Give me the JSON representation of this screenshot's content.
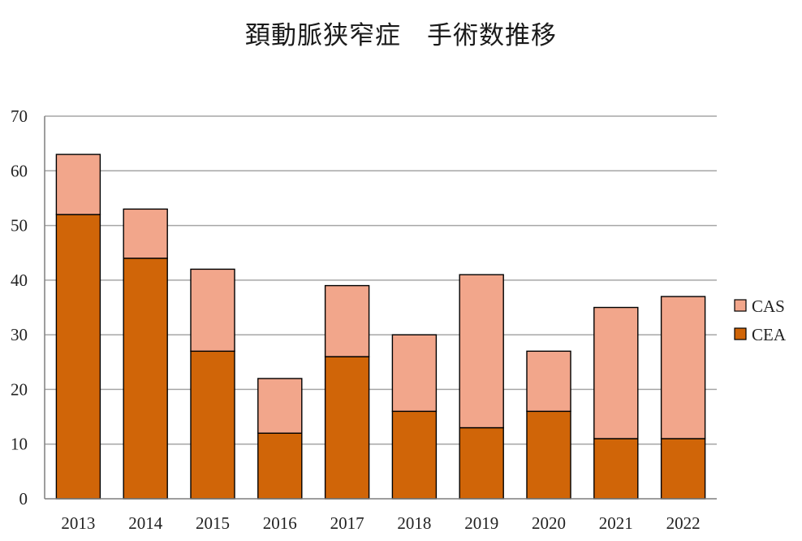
{
  "chart_data": {
    "type": "bar",
    "stacked": true,
    "title": "頚動脈狭窄症　手術数推移",
    "categories": [
      "2013",
      "2014",
      "2015",
      "2016",
      "2017",
      "2018",
      "2019",
      "2020",
      "2021",
      "2022"
    ],
    "series": [
      {
        "name": "CEA",
        "color": "#d06508",
        "values": [
          52,
          44,
          27,
          12,
          26,
          16,
          13,
          16,
          11,
          11
        ]
      },
      {
        "name": "CAS",
        "color": "#f2a68b",
        "values": [
          11,
          9,
          15,
          10,
          13,
          14,
          28,
          11,
          24,
          26
        ]
      }
    ],
    "ylim": [
      0,
      70
    ],
    "yticks": [
      0,
      10,
      20,
      30,
      40,
      50,
      60,
      70
    ],
    "grid": true,
    "legend": {
      "position": "right",
      "order": [
        "CAS",
        "CEA"
      ]
    }
  }
}
